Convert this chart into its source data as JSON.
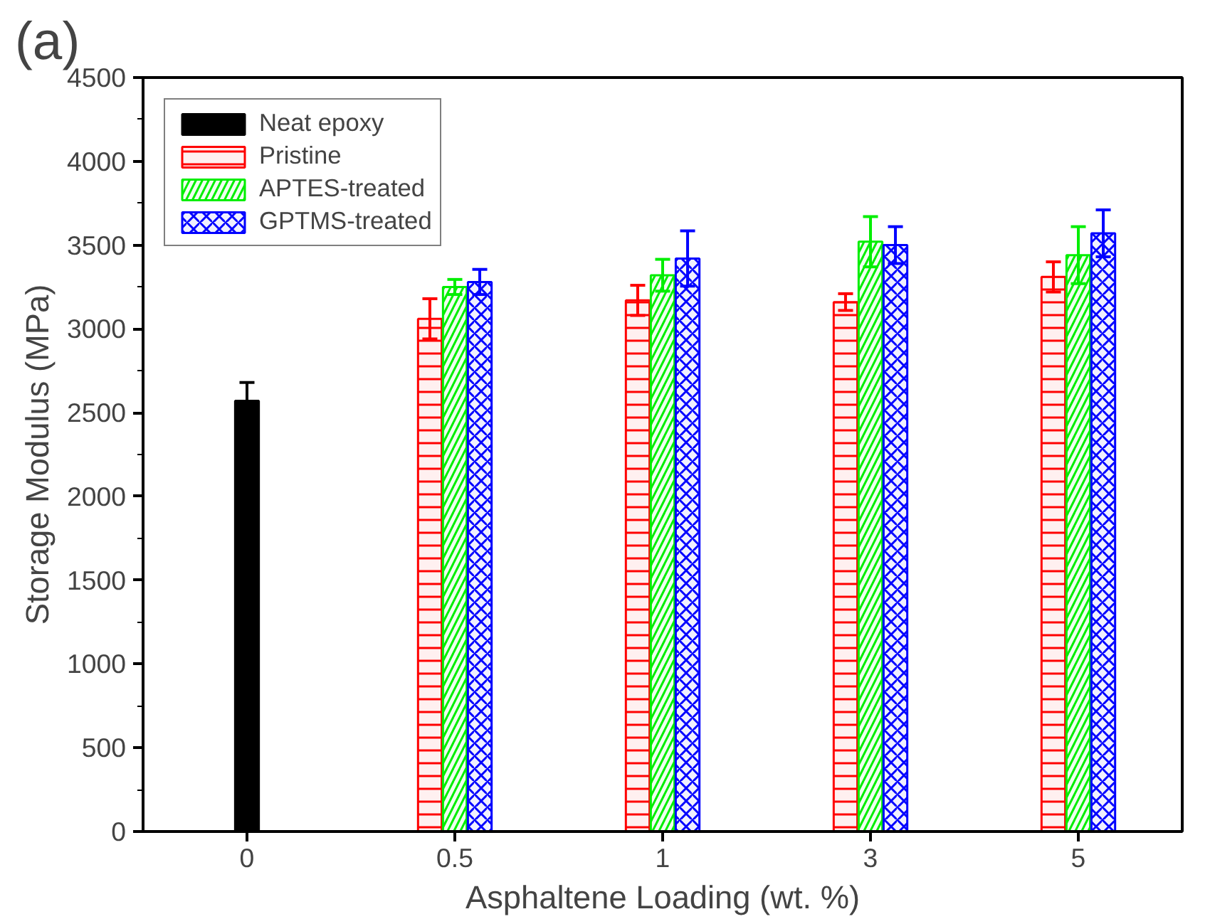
{
  "chart_data": {
    "type": "bar",
    "title": "(a)",
    "xlabel": "Asphaltene Loading (wt. %)",
    "ylabel": "Storage Modulus (MPa)",
    "categories": [
      "0",
      "0.5",
      "1",
      "3",
      "5"
    ],
    "series": [
      {
        "name": "Neat epoxy",
        "color": "#000000",
        "values": [
          2570,
          null,
          null,
          null,
          null
        ],
        "errors": [
          110,
          null,
          null,
          null,
          null
        ]
      },
      {
        "name": "Pristine",
        "color": "#ff0000",
        "values": [
          null,
          3060,
          3170,
          3160,
          3310
        ],
        "errors": [
          null,
          120,
          90,
          50,
          90
        ]
      },
      {
        "name": "APTES-treated",
        "color": "#00ee00",
        "values": [
          null,
          3250,
          3320,
          3520,
          3440
        ],
        "errors": [
          null,
          45,
          95,
          150,
          170
        ]
      },
      {
        "name": "GPTMS-treated",
        "color": "#0000ff",
        "values": [
          null,
          3280,
          3420,
          3500,
          3570
        ],
        "errors": [
          null,
          75,
          165,
          110,
          140
        ]
      }
    ],
    "ylim": [
      0,
      4500
    ],
    "yticks": [
      0,
      500,
      1000,
      1500,
      2000,
      2500,
      3000,
      3500,
      4000,
      4500
    ],
    "grid": false,
    "legend": "top left"
  }
}
